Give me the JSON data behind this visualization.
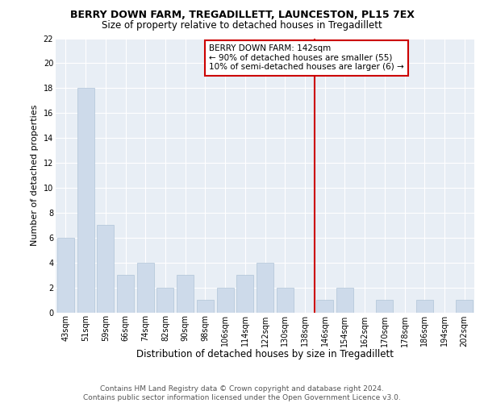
{
  "title": "BERRY DOWN FARM, TREGADILLETT, LAUNCESTON, PL15 7EX",
  "subtitle": "Size of property relative to detached houses in Tregadillett",
  "xlabel": "Distribution of detached houses by size in Tregadillett",
  "ylabel": "Number of detached properties",
  "categories": [
    "43sqm",
    "51sqm",
    "59sqm",
    "66sqm",
    "74sqm",
    "82sqm",
    "90sqm",
    "98sqm",
    "106sqm",
    "114sqm",
    "122sqm",
    "130sqm",
    "138sqm",
    "146sqm",
    "154sqm",
    "162sqm",
    "170sqm",
    "178sqm",
    "186sqm",
    "194sqm",
    "202sqm"
  ],
  "values": [
    6,
    18,
    7,
    3,
    4,
    2,
    3,
    1,
    2,
    3,
    4,
    2,
    0,
    1,
    2,
    0,
    1,
    0,
    1,
    0,
    1
  ],
  "bar_color": "#cddaea",
  "bar_edge_color": "#b0c4d8",
  "vline_color": "#cc0000",
  "annotation_text": "BERRY DOWN FARM: 142sqm\n← 90% of detached houses are smaller (55)\n10% of semi-detached houses are larger (6) →",
  "annotation_box_color": "#cc0000",
  "ylim": [
    0,
    22
  ],
  "yticks": [
    0,
    2,
    4,
    6,
    8,
    10,
    12,
    14,
    16,
    18,
    20,
    22
  ],
  "footer_text": "Contains HM Land Registry data © Crown copyright and database right 2024.\nContains public sector information licensed under the Open Government Licence v3.0.",
  "background_color": "#e8eef5",
  "grid_color": "#ffffff",
  "title_fontsize": 9,
  "subtitle_fontsize": 8.5,
  "xlabel_fontsize": 8.5,
  "ylabel_fontsize": 8,
  "tick_fontsize": 7,
  "annotation_fontsize": 7.5,
  "footer_fontsize": 6.5
}
